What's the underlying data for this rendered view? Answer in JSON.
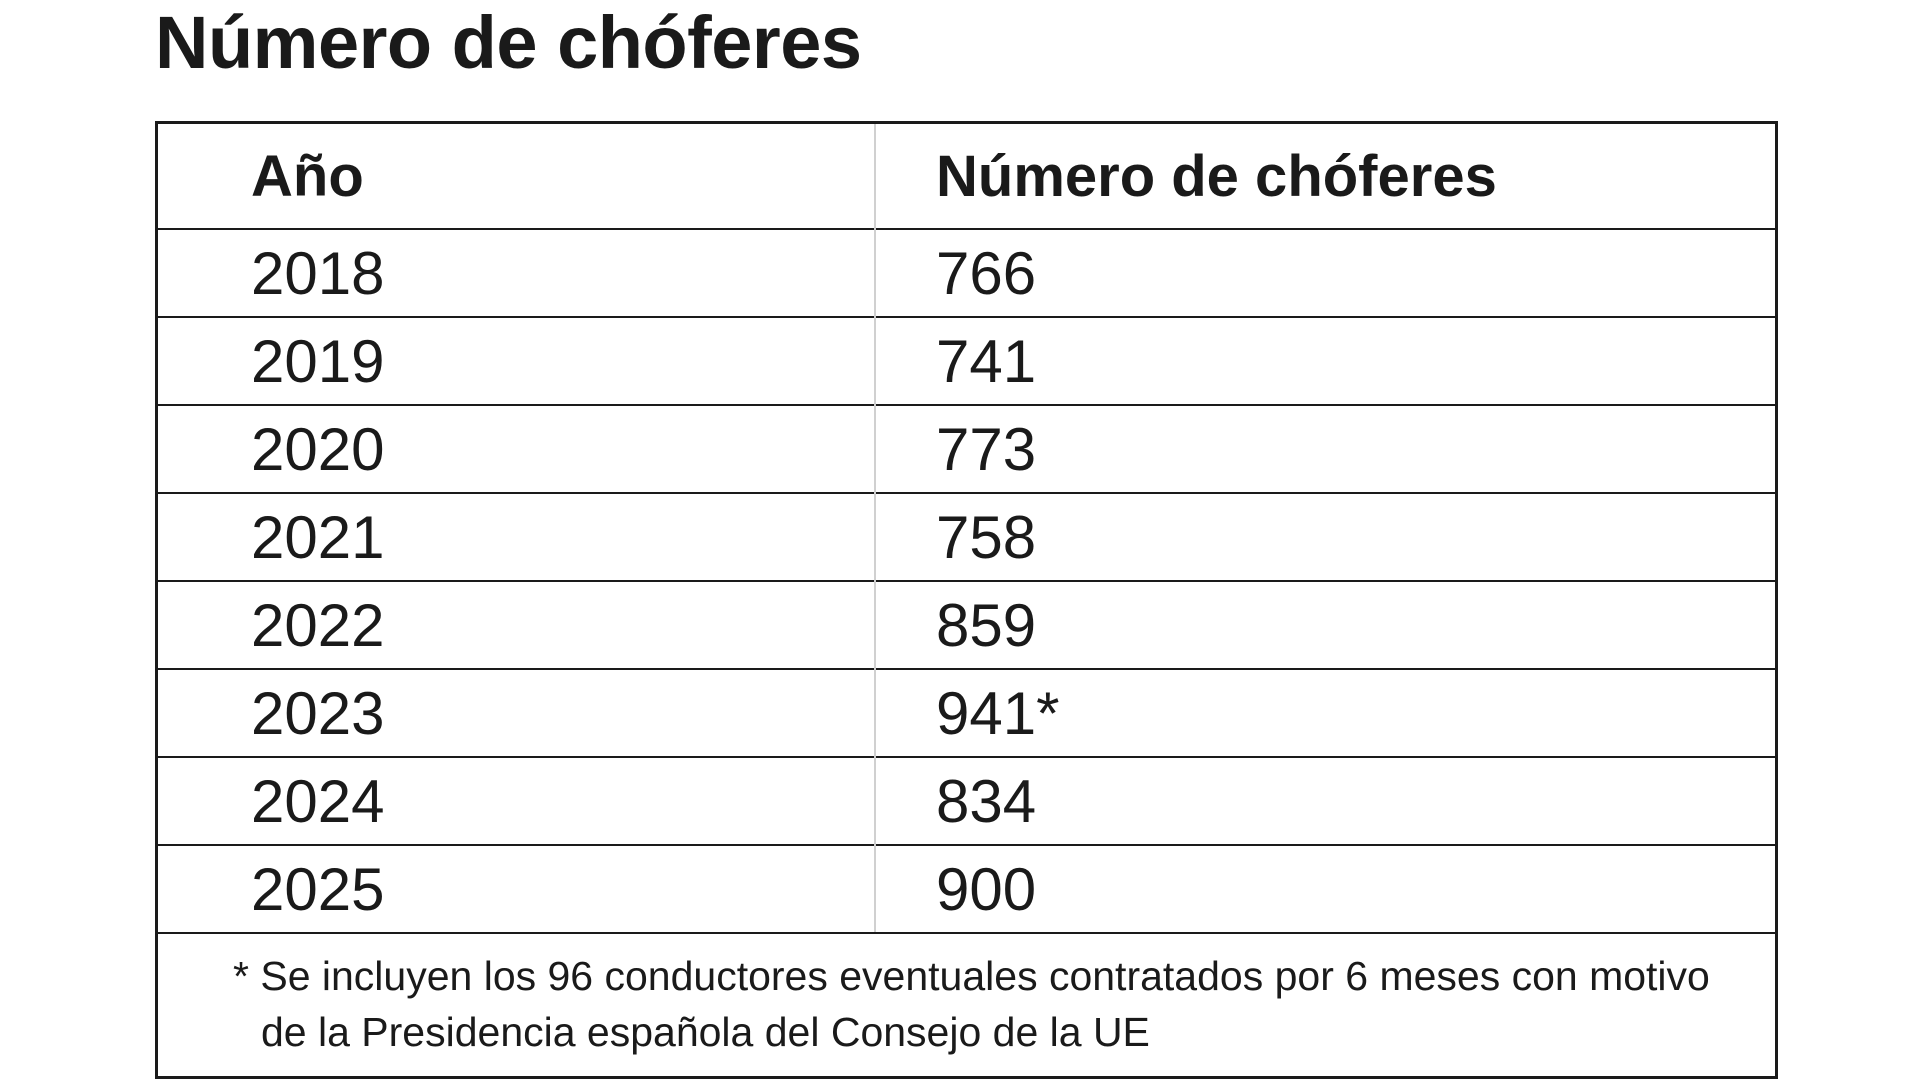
{
  "header": {
    "title": "Número de chóferes"
  },
  "table": {
    "columns": [
      "Año",
      "Número de chóferes"
    ],
    "rows": [
      [
        2018,
        766
      ],
      [
        2019,
        741
      ],
      [
        2020,
        773
      ],
      [
        2021,
        758
      ],
      [
        2022,
        859
      ],
      [
        2023,
        "941*"
      ],
      [
        2024,
        834
      ],
      [
        2025,
        900
      ]
    ],
    "footnote": "* Se incluyen los 96 conductores eventuales contratados por 6 meses con motivo de la Presidencia española del Consejo de la UE"
  }
}
